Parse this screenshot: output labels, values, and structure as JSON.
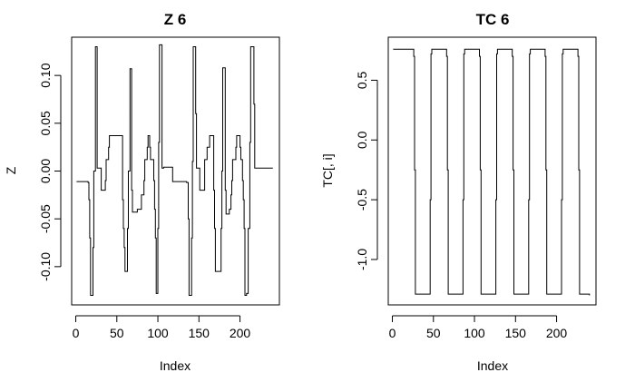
{
  "chart_data": [
    {
      "type": "line",
      "subtype": "step",
      "title": "Z 6",
      "xlabel": "Index",
      "ylabel": "Z",
      "xlim": [
        -5,
        248
      ],
      "ylim": [
        -0.14,
        0.14
      ],
      "xticks": [
        "0",
        "50",
        "100",
        "150",
        "200"
      ],
      "yticks": [
        "-0.10",
        "-0.05",
        "0.00",
        "0.05",
        "0.10"
      ],
      "grid": false,
      "x": [
        1,
        14,
        15,
        16,
        17,
        18,
        20,
        21,
        22,
        24,
        25,
        26,
        27,
        28,
        30,
        31,
        32,
        34,
        35,
        36,
        37,
        38,
        40,
        41,
        43,
        46,
        47,
        50,
        56,
        57,
        58,
        59,
        60,
        62,
        63,
        64,
        66,
        67,
        68,
        69,
        70,
        73,
        75,
        80,
        83,
        84,
        86,
        87,
        88,
        89,
        90,
        91,
        93,
        94,
        95,
        96,
        97,
        98,
        99,
        100,
        101,
        102,
        103,
        105,
        106,
        107,
        108,
        115,
        116,
        117,
        118,
        130,
        135,
        136,
        137,
        138,
        140,
        141,
        142,
        143,
        145,
        146,
        147,
        148,
        150,
        151,
        152,
        153,
        155,
        157,
        158,
        160,
        163,
        164,
        166,
        167,
        168,
        169,
        170,
        174,
        177,
        178,
        179,
        180,
        182,
        183,
        184,
        185,
        187,
        189,
        190,
        191,
        193,
        195,
        196,
        198,
        200,
        201,
        202,
        203,
        204,
        205,
        206,
        207,
        208,
        209,
        210,
        212,
        213,
        215,
        216,
        217,
        218,
        220,
        221,
        222,
        223,
        224,
        225,
        226,
        227,
        228,
        230,
        231,
        232,
        240
      ],
      "y": [
        -0.011,
        -0.011,
        -0.012,
        -0.03,
        -0.07,
        -0.13,
        -0.13,
        -0.08,
        0.0,
        0.13,
        0.13,
        0.003,
        0.003,
        0.003,
        0.003,
        -0.02,
        -0.02,
        -0.02,
        -0.02,
        -0.01,
        0.012,
        0.012,
        0.025,
        0.037,
        0.037,
        0.037,
        0.037,
        0.037,
        0.037,
        -0.03,
        -0.06,
        -0.08,
        -0.105,
        -0.105,
        -0.06,
        0.0,
        0.107,
        0.107,
        -0.02,
        -0.043,
        -0.043,
        -0.043,
        -0.04,
        -0.025,
        -0.01,
        0.012,
        0.012,
        0.025,
        0.037,
        0.037,
        0.025,
        0.012,
        0.012,
        0.012,
        -0.01,
        -0.04,
        -0.07,
        -0.128,
        -0.128,
        -0.06,
        0.03,
        0.132,
        0.132,
        0.003,
        0.003,
        0.004,
        0.004,
        0.004,
        0.004,
        0.004,
        -0.011,
        -0.011,
        -0.012,
        -0.012,
        -0.05,
        -0.13,
        -0.13,
        -0.07,
        0.01,
        0.13,
        0.13,
        0.06,
        0.003,
        0.003,
        0.003,
        -0.02,
        -0.02,
        -0.02,
        -0.02,
        0.012,
        0.012,
        0.025,
        0.037,
        0.037,
        0.037,
        0.037,
        -0.02,
        -0.06,
        -0.105,
        -0.105,
        -0.06,
        0.0,
        0.108,
        0.108,
        -0.02,
        -0.045,
        -0.045,
        -0.045,
        -0.04,
        -0.025,
        -0.01,
        0.012,
        0.012,
        0.025,
        0.037,
        0.037,
        0.025,
        0.012,
        0.012,
        -0.01,
        -0.03,
        -0.06,
        -0.13,
        -0.13,
        -0.128,
        -0.128,
        -0.06,
        0.03,
        0.13,
        0.13,
        0.13,
        0.07,
        0.003,
        0.003,
        0.003,
        0.003,
        0.003,
        0.003,
        0.003,
        0.003,
        0.003,
        0.003,
        0.003,
        0.003,
        0.003,
        0.003
      ]
    },
    {
      "type": "line",
      "subtype": "step",
      "title": "TC 6",
      "xlabel": "Index",
      "ylabel": "TC[, i]",
      "xlim": [
        -5,
        248
      ],
      "ylim": [
        -1.38,
        0.86
      ],
      "xticks": [
        "0",
        "50",
        "100",
        "150",
        "200"
      ],
      "yticks": [
        "-1.0",
        "-0.5",
        "0.0",
        "0.5"
      ],
      "grid": false,
      "x": [
        1,
        25,
        26,
        27,
        28,
        32,
        45,
        46,
        47,
        48,
        52,
        65,
        66,
        67,
        68,
        72,
        85,
        86,
        87,
        88,
        92,
        105,
        106,
        107,
        108,
        112,
        125,
        126,
        127,
        128,
        132,
        145,
        146,
        147,
        148,
        152,
        165,
        166,
        167,
        168,
        172,
        185,
        186,
        187,
        188,
        192,
        205,
        206,
        207,
        208,
        212,
        225,
        226,
        227,
        228,
        232,
        240
      ],
      "y": [
        0.76,
        0.76,
        0.7,
        -0.25,
        -1.29,
        -1.29,
        -1.29,
        -0.5,
        0.72,
        0.76,
        0.76,
        0.76,
        0.7,
        -0.25,
        -1.29,
        -1.29,
        -1.29,
        -0.5,
        0.72,
        0.76,
        0.76,
        0.76,
        0.7,
        -0.25,
        -1.29,
        -1.29,
        -1.29,
        -0.5,
        0.72,
        0.76,
        0.76,
        0.76,
        0.7,
        -0.25,
        -1.29,
        -1.29,
        -1.29,
        -0.5,
        0.72,
        0.76,
        0.76,
        0.76,
        0.7,
        -0.25,
        -1.29,
        -1.29,
        -1.29,
        -0.5,
        0.72,
        0.76,
        0.76,
        0.76,
        0.7,
        -0.25,
        -1.29,
        -1.29,
        -1.3
      ]
    }
  ]
}
